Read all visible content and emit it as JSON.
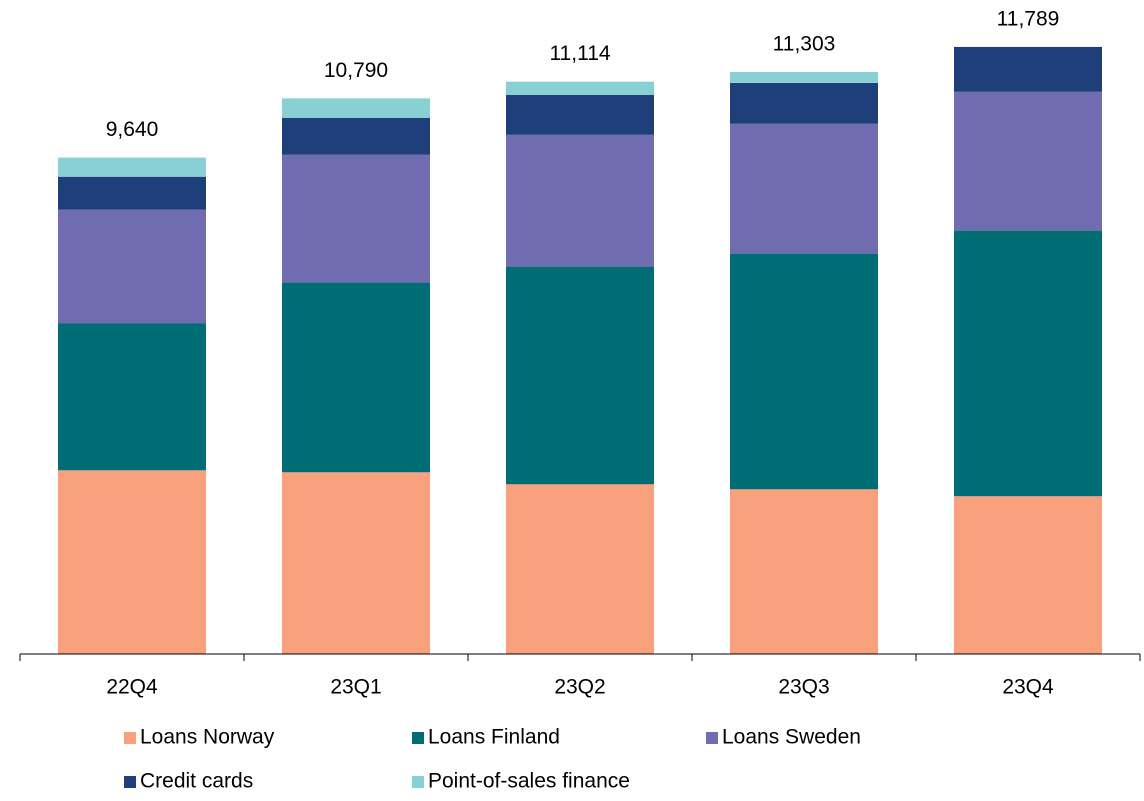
{
  "chart_data": {
    "type": "stacked_bar",
    "categories": [
      "22Q4",
      "23Q1",
      "23Q2",
      "23Q3",
      "23Q4"
    ],
    "series": [
      {
        "name": "Loans Norway",
        "color": "#f9a07c",
        "values": [
          3568,
          3529,
          3296,
          3199,
          3064
        ]
      },
      {
        "name": "Loans Finland",
        "color": "#006d75",
        "values": [
          2850,
          3684,
          4227,
          4576,
          5158
        ]
      },
      {
        "name": "Loans Sweden",
        "color": "#6f6db0",
        "values": [
          2210,
          2482,
          2559,
          2521,
          2695
        ]
      },
      {
        "name": "Credit cards",
        "color": "#1f3f7a",
        "values": [
          640,
          717,
          776,
          794,
          872
        ]
      },
      {
        "name": "Point-of-sales finance",
        "color": "#88d0d3",
        "values": [
          372,
          378,
          256,
          213,
          0
        ]
      }
    ],
    "totals": [
      9640,
      10790,
      11114,
      11303,
      11789
    ],
    "total_labels": [
      "9,640",
      "10,790",
      "11,114",
      "11,303",
      "11,789"
    ],
    "ylim": [
      0,
      12700
    ]
  }
}
